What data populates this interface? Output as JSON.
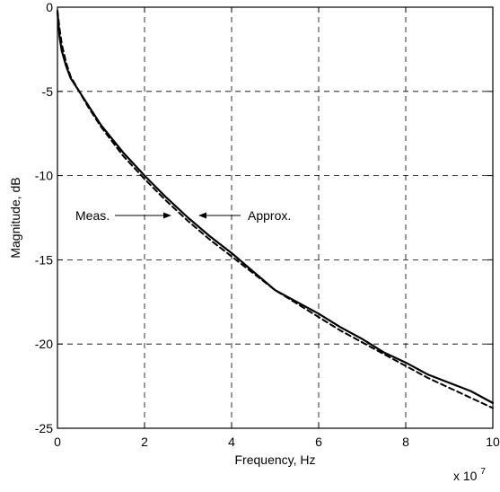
{
  "chart_data": {
    "type": "line",
    "title": "",
    "xlabel": "Frequency, Hz",
    "ylabel": "Magnitude, dB",
    "x_scale_multiplier": "x 10",
    "x_scale_exponent": "7",
    "xlim": [
      0,
      10
    ],
    "ylim": [
      -25,
      0
    ],
    "x_ticks": [
      "0",
      "2",
      "4",
      "6",
      "8",
      "10"
    ],
    "y_ticks": [
      "0",
      "-5",
      "-10",
      "-15",
      "-20",
      "-25"
    ],
    "grid": true,
    "series": [
      {
        "name": "Meas.",
        "color": "#000000",
        "style": "solid",
        "x": [
          0.0,
          0.05,
          0.1,
          0.2,
          0.3,
          0.5,
          0.7,
          1.0,
          1.5,
          2.0,
          2.5,
          3.0,
          3.5,
          4.0,
          4.5,
          5.0,
          5.5,
          6.0,
          6.5,
          7.0,
          7.5,
          8.0,
          8.5,
          9.0,
          9.5,
          10.0
        ],
        "y": [
          -0.3,
          -1.8,
          -2.6,
          -3.5,
          -4.2,
          -5.0,
          -5.8,
          -7.0,
          -8.6,
          -10.0,
          -11.3,
          -12.5,
          -13.6,
          -14.6,
          -15.7,
          -16.8,
          -17.5,
          -18.2,
          -19.0,
          -19.7,
          -20.5,
          -21.1,
          -21.8,
          -22.3,
          -22.8,
          -23.5
        ]
      },
      {
        "name": "Approx.",
        "color": "#000000",
        "style": "dashed",
        "x": [
          0.0,
          0.05,
          0.1,
          0.2,
          0.3,
          0.5,
          0.7,
          1.0,
          1.5,
          2.0,
          2.5,
          3.0,
          3.5,
          4.0,
          4.5,
          5.0,
          5.5,
          6.0,
          6.5,
          7.0,
          7.5,
          8.0,
          8.5,
          9.0,
          9.5,
          10.0
        ],
        "y": [
          -0.2,
          -1.3,
          -2.2,
          -3.3,
          -4.1,
          -5.0,
          -5.9,
          -7.1,
          -8.8,
          -10.2,
          -11.5,
          -12.7,
          -13.8,
          -14.8,
          -15.8,
          -16.8,
          -17.6,
          -18.4,
          -19.2,
          -19.9,
          -20.6,
          -21.3,
          -22.0,
          -22.6,
          -23.2,
          -23.8
        ]
      }
    ],
    "annotations": [
      {
        "text": "Meas.",
        "target_series": "Meas.",
        "arrow_direction": "right"
      },
      {
        "text": "Approx.",
        "target_series": "Approx.",
        "arrow_direction": "left"
      }
    ]
  }
}
